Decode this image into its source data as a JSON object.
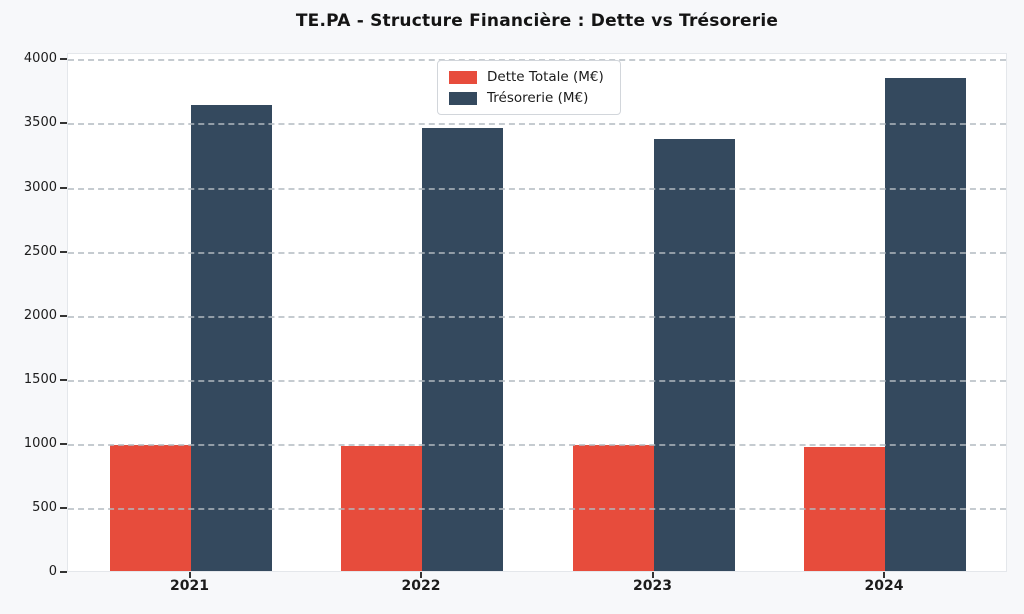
{
  "chart_data": {
    "type": "bar",
    "title": "TE.PA - Structure Financière : Dette vs Trésorerie",
    "categories": [
      "2021",
      "2022",
      "2023",
      "2024"
    ],
    "series": [
      {
        "name": "Dette Totale (M€)",
        "color": "#e74c3c",
        "values": [
          980,
          975,
          985,
          965
        ]
      },
      {
        "name": "Trésorerie (M€)",
        "color": "#34495e",
        "values": [
          3640,
          3460,
          3370,
          3845
        ]
      }
    ],
    "xlabel": "",
    "ylabel": "",
    "ylim": [
      0,
      4050
    ],
    "yticks": [
      0,
      500,
      1000,
      1500,
      2000,
      2500,
      3000,
      3500,
      4000
    ],
    "grid": "horizontal dashed, drawn over bars",
    "legend_position": "upper center",
    "colors": {
      "figure_background": "#f7f8fa",
      "plot_background": "#ffffff",
      "grid": "#b2b9c0",
      "text": "#1c1c1c"
    }
  }
}
